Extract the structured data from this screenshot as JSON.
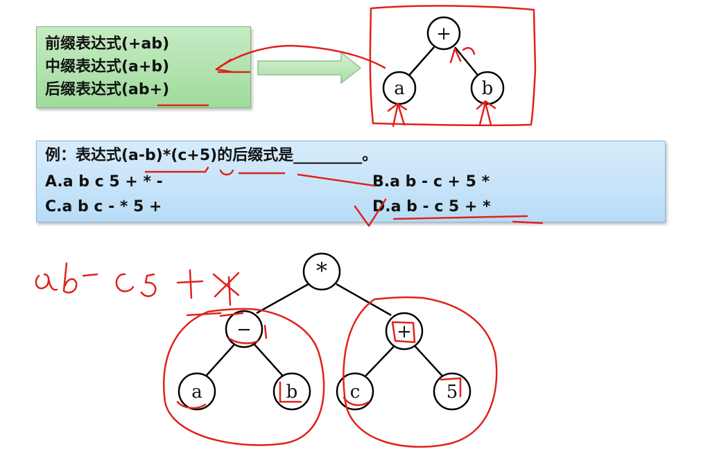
{
  "notation_box": {
    "prefix": "前缀表达式(+ab)",
    "infix": "中缀表达式(a+b)",
    "postfix": "后缀表达式(ab+)"
  },
  "top_tree": {
    "root": "+",
    "left": "a",
    "right": "b"
  },
  "question": {
    "stem": "例：表达式(a-b)*(c+5)的后缀式是_________。",
    "option_a": "A.a b c 5 + * -",
    "option_b": "B.a b - c + 5 *",
    "option_c": "C.a b c - * 5 +",
    "option_d": "D.a b - c 5 + *"
  },
  "bottom_tree": {
    "root": "*",
    "left": "−",
    "right": "+",
    "left_left": "a",
    "left_right": "b",
    "right_left": "c",
    "right_right": "5"
  },
  "handwritten_answer": "ab− c5 + *",
  "ink_color": "#e0201b",
  "green_box_color": "#a8deA5",
  "blue_box_color": "#c4e2f8"
}
